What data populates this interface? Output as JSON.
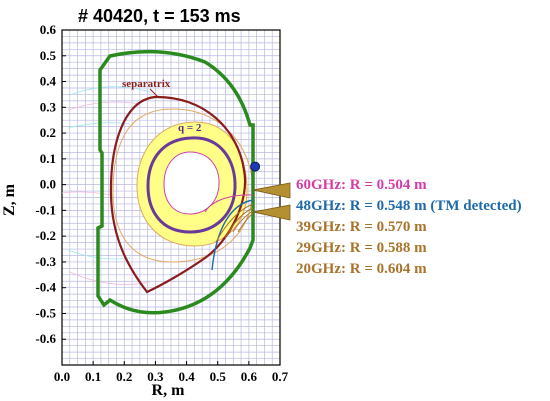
{
  "title": "# 40420,   t = 153 ms",
  "chart_data": {
    "type": "diagram",
    "xlabel": "R, m",
    "ylabel": "Z, m",
    "xlim": [
      0.0,
      0.7
    ],
    "ylim": [
      -0.7,
      0.6
    ],
    "xticks": [
      "0.0",
      "0.1",
      "0.2",
      "0.3",
      "0.4",
      "0.5",
      "0.6",
      "0.7"
    ],
    "yticks": [
      "0.6",
      "0.5",
      "0.4",
      "0.3",
      "0.2",
      "0.1",
      "0.0",
      "-0.1",
      "-0.2",
      "-0.3",
      "-0.4",
      "-0.5",
      "-0.6"
    ],
    "grid": true,
    "annotations": {
      "separatrix": "separatrix",
      "q2": "q = 2"
    },
    "detector_point": {
      "r": 0.62,
      "z": 0.07
    },
    "legend": [
      {
        "label": "60GHz: R = 0.504 m",
        "color": "#d63ca8"
      },
      {
        "label": "48GHz: R = 0.548 m (TM detected)",
        "color": "#1f6aa8"
      },
      {
        "label": "39GHz: R = 0.570 m",
        "color": "#a8732a"
      },
      {
        "label": "29GHz: R = 0.588 m",
        "color": "#a8732a"
      },
      {
        "label": "20GHz: R = 0.604 m",
        "color": "#a8732a"
      }
    ]
  },
  "colors": {
    "wall": "#2a8a1e",
    "separatrix": "#8b1c1c",
    "yellow_region": "#ffff88",
    "q2_surface": "#6a3a9a"
  }
}
